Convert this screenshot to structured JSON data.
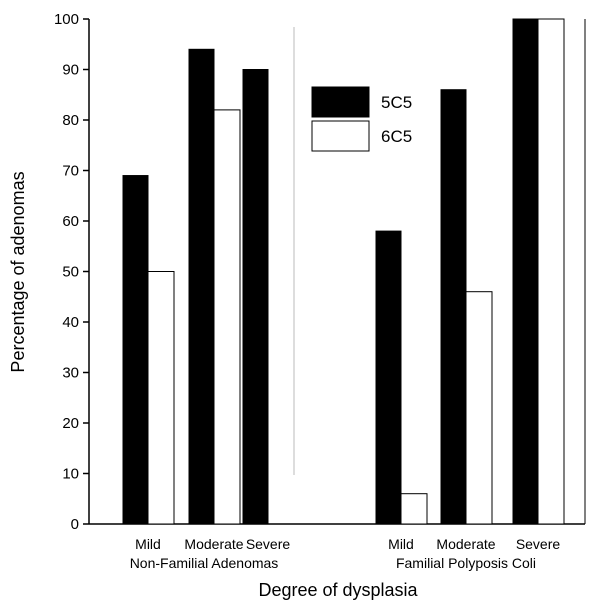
{
  "chart_data": {
    "type": "bar",
    "xlabel": "Degree of dysplasia",
    "ylabel": "Percentage of adenomas",
    "ylim": [
      0,
      100
    ],
    "yticks": [
      0,
      10,
      20,
      30,
      40,
      50,
      60,
      70,
      80,
      90,
      100
    ],
    "groups": [
      {
        "name": "Non-Familial Adenomas",
        "categories": [
          "Mild",
          "Moderate",
          "Severe"
        ],
        "series": [
          {
            "name": "5C5",
            "values": [
              69,
              94,
              90
            ]
          },
          {
            "name": "6C5",
            "values": [
              50,
              82,
              null
            ]
          }
        ]
      },
      {
        "name": "Familial Polyposis Coli",
        "categories": [
          "Mild",
          "Moderate",
          "Severe"
        ],
        "series": [
          {
            "name": "5C5",
            "values": [
              58,
              86,
              100
            ]
          },
          {
            "name": "6C5",
            "values": [
              6,
              46,
              100
            ]
          }
        ]
      }
    ],
    "legend": {
      "placement": "top-center",
      "entries": [
        {
          "name": "5C5",
          "color": "#000000"
        },
        {
          "name": "6C5",
          "color": "#ffffff"
        }
      ]
    },
    "colors": {
      "5C5": "#000000",
      "6C5": "#ffffff",
      "outline": "#000000"
    }
  }
}
